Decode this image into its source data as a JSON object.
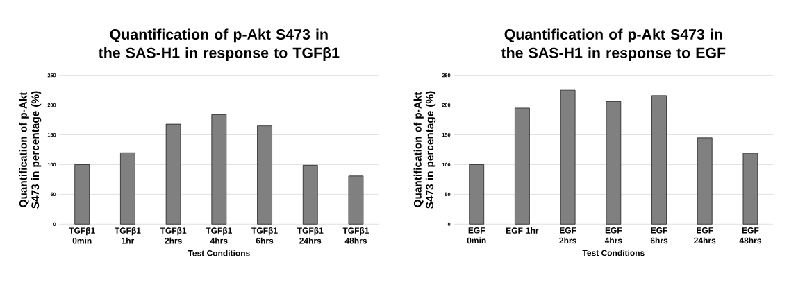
{
  "chart_data": [
    {
      "type": "bar",
      "title": "Quantification of p-Akt S473 in the SAS-H1 in response to TGFβ1",
      "xlabel": "Test Conditions",
      "ylabel": "Quantification of p-Akt S473 in percentage (%)",
      "categories": [
        "TGFβ1 0min",
        "TGFβ1 1hr",
        "TGFβ1 2hrs",
        "TGFβ1 4hrs",
        "TGFβ1 6hrs",
        "TGFβ1 24hrs",
        "TGFβ1 48hrs"
      ],
      "values": [
        100,
        120,
        168,
        184,
        165,
        99,
        81
      ],
      "color": "#808080",
      "ylim": [
        0,
        250
      ],
      "yticks": [
        0,
        50,
        100,
        150,
        200,
        250
      ],
      "grid": "y"
    },
    {
      "type": "bar",
      "title": "Quantification of p-Akt S473 in the SAS-H1 in response to EGF",
      "xlabel": "Test Conditions",
      "ylabel": "Quantification of p-Akt S473 in percentage (%)",
      "categories": [
        "EGF 0min",
        "EGF 1hr",
        "EGF 2hrs",
        "EGF 4hrs",
        "EGF 6hrs",
        "EGF 24hrs",
        "EGF 48hrs"
      ],
      "values": [
        100,
        195,
        225,
        206,
        216,
        145,
        119
      ],
      "color": "#808080",
      "ylim": [
        0,
        250
      ],
      "yticks": [
        0,
        50,
        100,
        150,
        200,
        250
      ],
      "grid": "y"
    }
  ]
}
